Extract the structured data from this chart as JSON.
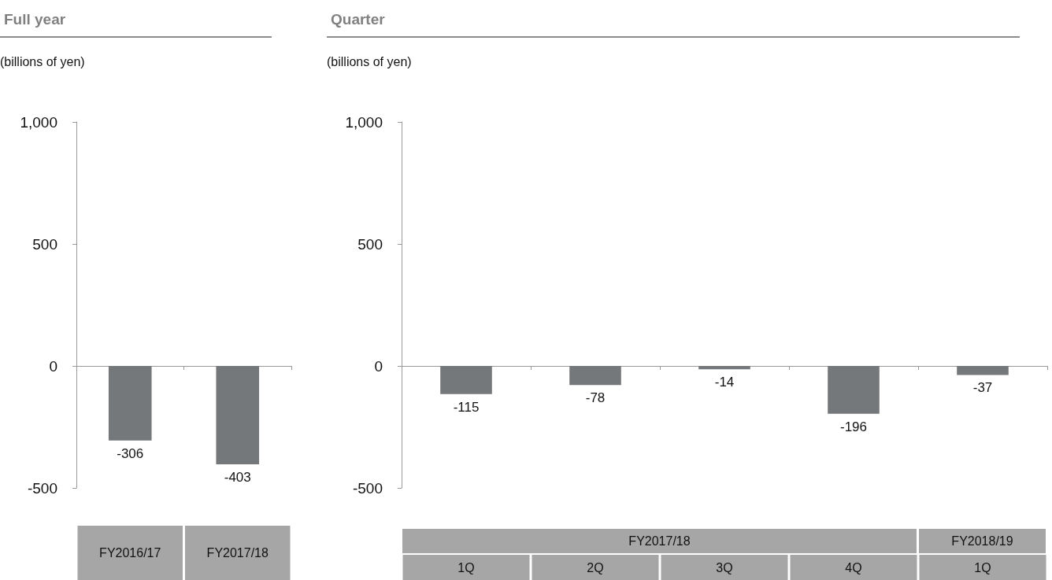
{
  "chart_data": [
    {
      "type": "bar",
      "title": "Full year",
      "ylabel": "(billions of yen)",
      "categories": [
        "FY2016/17",
        "FY2017/18"
      ],
      "values": [
        -306,
        -403
      ],
      "color": "#75787b",
      "data_labels": true,
      "ylim": [
        -500,
        1000
      ],
      "yticks": [
        -500,
        0,
        500,
        {
          "value": 1000,
          "label": "1,000"
        }
      ]
    },
    {
      "type": "bar",
      "title": "Quarter",
      "ylabel": "(billions of yen)",
      "categories": [
        "1Q",
        "2Q",
        "3Q",
        "4Q",
        "1Q"
      ],
      "values": [
        -115,
        -78,
        -14,
        -196,
        -37
      ],
      "color": "#75787b",
      "data_labels": true,
      "ylim": [
        -500,
        1000
      ],
      "yticks": [
        -500,
        0,
        500,
        {
          "value": 1000,
          "label": "1,000"
        }
      ],
      "annotations": [
        "FY2017/18",
        "FY2018/19"
      ]
    }
  ]
}
